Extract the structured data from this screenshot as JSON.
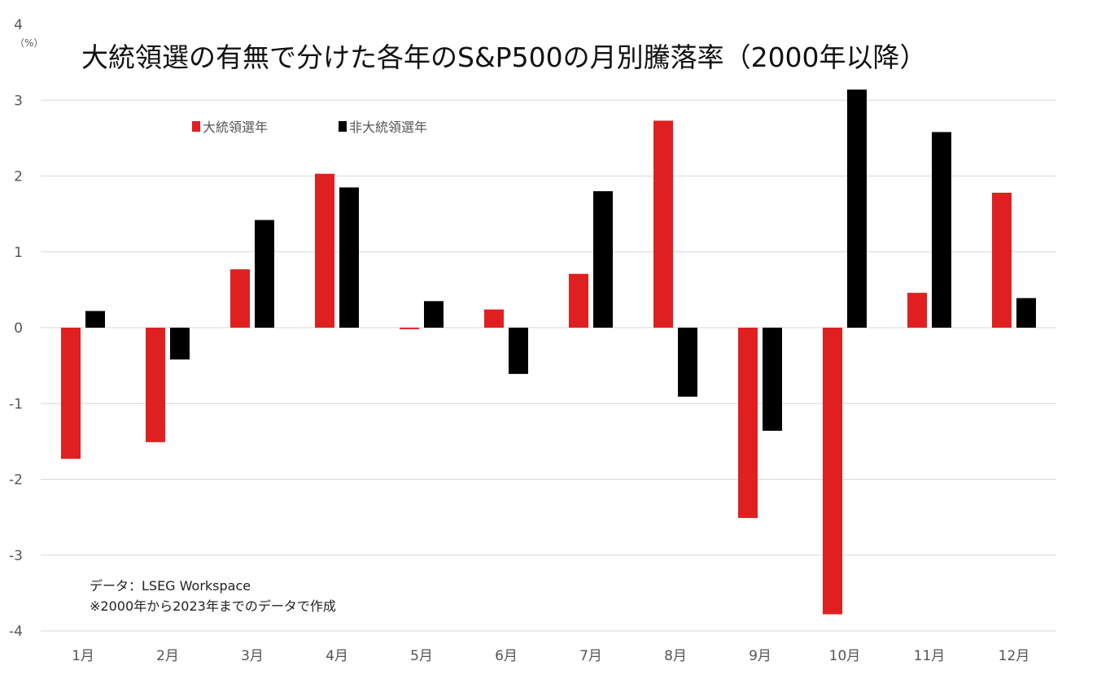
{
  "chart_data": {
    "type": "bar",
    "title": "大統領選の有無で分けた各年のS&P500の月別騰落率（2000年以降）",
    "ylabel": "（%）",
    "xlabel": "",
    "ylim": [
      -4,
      4
    ],
    "yticks": [
      "4",
      "3",
      "2",
      "1",
      "0",
      "-1",
      "-2",
      "-3",
      "-4"
    ],
    "ytick_values": [
      4,
      3,
      2,
      1,
      0,
      -1,
      -2,
      -3,
      -4
    ],
    "categories": [
      "1月",
      "2月",
      "3月",
      "4月",
      "5月",
      "6月",
      "7月",
      "8月",
      "9月",
      "10月",
      "11月",
      "12月"
    ],
    "series": [
      {
        "name": "大統領選年",
        "color": "#e02020",
        "values": [
          -1.73,
          -1.51,
          0.77,
          2.03,
          -0.02,
          0.24,
          0.71,
          2.73,
          -2.51,
          -3.78,
          0.46,
          1.78
        ]
      },
      {
        "name": "非大統領選年",
        "color": "#000000",
        "values": [
          0.22,
          -0.42,
          1.42,
          1.85,
          0.35,
          -0.61,
          1.8,
          -0.91,
          -1.36,
          3.14,
          2.58,
          0.39
        ]
      }
    ],
    "grid": true,
    "legend_position": "top-left"
  },
  "notes": [
    "データ：LSEG Workspace",
    "※2000年から2023年までのデータで作成"
  ]
}
